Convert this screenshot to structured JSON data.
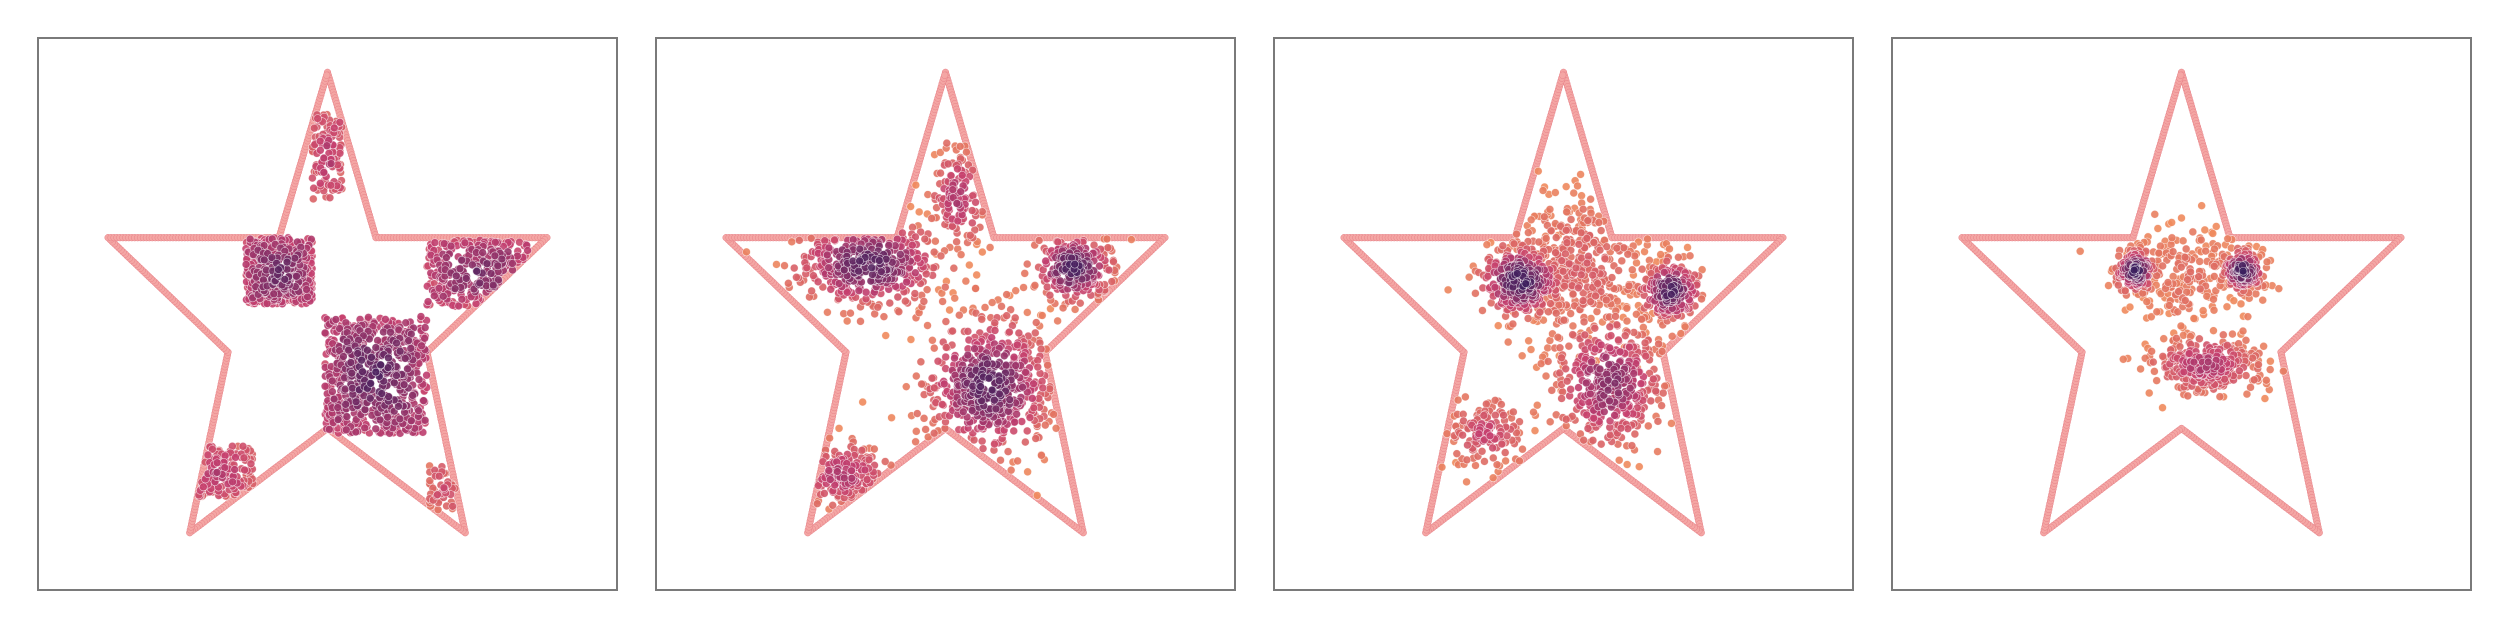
{
  "colors": {
    "boundary": "#f4a6a4",
    "boundary_edge": "#e67f86",
    "low_density": "#ef8a5c",
    "mid_density": "#c53f6f",
    "high_density": "#3b1f5e",
    "frame": "#7a7a7a"
  },
  "chart_data": [
    {
      "type": "scatter",
      "title": "",
      "xlabel": "",
      "ylabel": "",
      "xlim": [
        -1.1,
        1.1
      ],
      "ylim": [
        -1.05,
        1.05
      ],
      "ticks": "none",
      "grid": false,
      "legend": "none",
      "boundary": {
        "shape": "five-pointed star",
        "vertices": [
          [
            0.0,
            0.95
          ],
          [
            0.19,
            0.3
          ],
          [
            0.86,
            0.3
          ],
          [
            0.39,
            -0.15
          ],
          [
            0.54,
            -0.86
          ],
          [
            0.0,
            -0.45
          ],
          [
            -0.54,
            -0.86
          ],
          [
            -0.39,
            -0.15
          ],
          [
            -0.86,
            0.3
          ],
          [
            -0.19,
            0.3
          ]
        ]
      },
      "clusters": [
        {
          "x": -0.19,
          "y": 0.17,
          "sx": 0.13,
          "sy": 0.13,
          "n": 420,
          "shape": "square",
          "density": 0.85
        },
        {
          "x": 0.19,
          "y": -0.24,
          "sx": 0.2,
          "sy": 0.23,
          "n": 650,
          "shape": "square",
          "density": 0.9
        },
        {
          "x": 0.59,
          "y": 0.16,
          "sx": 0.2,
          "sy": 0.13,
          "n": 300,
          "shape": "square",
          "density": 0.8
        },
        {
          "x": 0.0,
          "y": 0.62,
          "sx": 0.06,
          "sy": 0.17,
          "n": 120,
          "shape": "square",
          "density": 0.55
        },
        {
          "x": -0.42,
          "y": -0.62,
          "sx": 0.13,
          "sy": 0.1,
          "n": 170,
          "shape": "square",
          "density": 0.55
        },
        {
          "x": 0.45,
          "y": -0.68,
          "sx": 0.05,
          "sy": 0.09,
          "n": 50,
          "shape": "square",
          "density": 0.4
        }
      ]
    },
    {
      "type": "scatter",
      "title": "",
      "xlabel": "",
      "ylabel": "",
      "xlim": [
        -1.1,
        1.1
      ],
      "ylim": [
        -1.05,
        1.05
      ],
      "ticks": "none",
      "grid": false,
      "legend": "none",
      "boundary": {
        "shape": "five-pointed star",
        "vertices": [
          [
            0.0,
            0.95
          ],
          [
            0.19,
            0.3
          ],
          [
            0.86,
            0.3
          ],
          [
            0.39,
            -0.15
          ],
          [
            0.54,
            -0.86
          ],
          [
            0.0,
            -0.45
          ],
          [
            -0.54,
            -0.86
          ],
          [
            -0.39,
            -0.15
          ],
          [
            -0.86,
            0.3
          ],
          [
            -0.19,
            0.3
          ]
        ]
      },
      "clusters": [
        {
          "x": -0.3,
          "y": 0.2,
          "sx": 0.15,
          "sy": 0.09,
          "n": 420,
          "shape": "gaussian",
          "density": 0.85
        },
        {
          "x": 0.17,
          "y": -0.28,
          "sx": 0.13,
          "sy": 0.14,
          "n": 560,
          "shape": "gaussian",
          "density": 0.85
        },
        {
          "x": 0.5,
          "y": 0.18,
          "sx": 0.08,
          "sy": 0.07,
          "n": 230,
          "shape": "gaussian",
          "density": 0.9
        },
        {
          "x": 0.05,
          "y": 0.46,
          "sx": 0.06,
          "sy": 0.11,
          "n": 130,
          "shape": "gaussian",
          "density": 0.55
        },
        {
          "x": -0.4,
          "y": -0.63,
          "sx": 0.1,
          "sy": 0.07,
          "n": 160,
          "shape": "gaussian",
          "density": 0.55
        }
      ]
    },
    {
      "type": "scatter",
      "title": "",
      "xlabel": "",
      "ylabel": "",
      "xlim": [
        -1.1,
        1.1
      ],
      "ylim": [
        -1.05,
        1.05
      ],
      "ticks": "none",
      "grid": false,
      "legend": "none",
      "boundary": {
        "shape": "five-pointed star",
        "vertices": [
          [
            0.0,
            0.95
          ],
          [
            0.19,
            0.3
          ],
          [
            0.86,
            0.3
          ],
          [
            0.39,
            -0.15
          ],
          [
            0.54,
            -0.86
          ],
          [
            0.0,
            -0.45
          ],
          [
            -0.54,
            -0.86
          ],
          [
            -0.39,
            -0.15
          ],
          [
            -0.86,
            0.3
          ],
          [
            -0.19,
            0.3
          ]
        ]
      },
      "clusters": [
        {
          "x": -0.17,
          "y": 0.13,
          "sx": 0.08,
          "sy": 0.07,
          "n": 300,
          "shape": "gaussian",
          "density": 0.95
        },
        {
          "x": 0.18,
          "y": -0.27,
          "sx": 0.11,
          "sy": 0.13,
          "n": 430,
          "shape": "gaussian",
          "density": 0.7
        },
        {
          "x": 0.42,
          "y": 0.09,
          "sx": 0.06,
          "sy": 0.06,
          "n": 210,
          "shape": "gaussian",
          "density": 0.9
        },
        {
          "x": 0.05,
          "y": 0.18,
          "sx": 0.15,
          "sy": 0.16,
          "n": 420,
          "shape": "gaussian",
          "density": 0.25
        },
        {
          "x": -0.3,
          "y": -0.47,
          "sx": 0.08,
          "sy": 0.07,
          "n": 140,
          "shape": "gaussian",
          "density": 0.45
        }
      ]
    },
    {
      "type": "scatter",
      "title": "",
      "xlabel": "",
      "ylabel": "",
      "xlim": [
        -1.1,
        1.1
      ],
      "ylim": [
        -1.05,
        1.05
      ],
      "ticks": "none",
      "grid": false,
      "legend": "none",
      "boundary": {
        "shape": "five-pointed star",
        "vertices": [
          [
            0.0,
            0.95
          ],
          [
            0.19,
            0.3
          ],
          [
            0.86,
            0.3
          ],
          [
            0.39,
            -0.15
          ],
          [
            0.54,
            -0.86
          ],
          [
            0.0,
            -0.45
          ],
          [
            -0.54,
            -0.86
          ],
          [
            -0.39,
            -0.15
          ],
          [
            -0.86,
            0.3
          ],
          [
            -0.19,
            0.3
          ]
        ]
      },
      "clusters": [
        {
          "x": -0.18,
          "y": 0.17,
          "sx": 0.04,
          "sy": 0.04,
          "n": 160,
          "shape": "gaussian",
          "density": 0.95
        },
        {
          "x": 0.24,
          "y": 0.17,
          "sx": 0.04,
          "sy": 0.04,
          "n": 170,
          "shape": "gaussian",
          "density": 0.95
        },
        {
          "x": 0.09,
          "y": -0.2,
          "sx": 0.11,
          "sy": 0.06,
          "n": 330,
          "shape": "gaussian",
          "density": 0.55
        },
        {
          "x": 0.05,
          "y": 0.15,
          "sx": 0.12,
          "sy": 0.1,
          "n": 220,
          "shape": "gaussian",
          "density": 0.15
        }
      ]
    }
  ]
}
